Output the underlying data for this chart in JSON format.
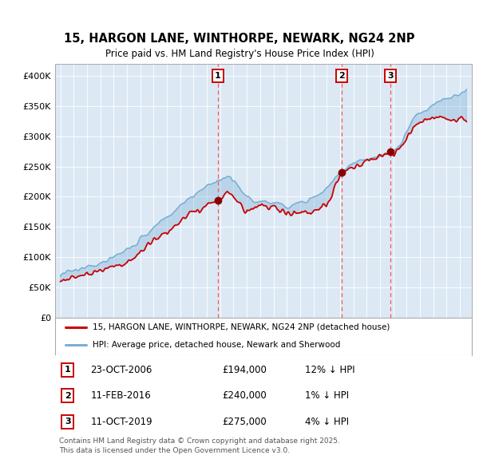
{
  "title": "15, HARGON LANE, WINTHORPE, NEWARK, NG24 2NP",
  "subtitle": "Price paid vs. HM Land Registry's House Price Index (HPI)",
  "bg_color": "#dce9f5",
  "hpi_color": "#7aafd4",
  "price_color": "#cc0000",
  "sale_marker_color": "#880000",
  "vline_color": "#ff5555",
  "sale_points": [
    {
      "date_num": 2006.81,
      "price": 194000,
      "label": "1",
      "date_str": "23-OCT-2006",
      "hpi_pct": "12% ↓ HPI"
    },
    {
      "date_num": 2016.11,
      "price": 240000,
      "label": "2",
      "date_str": "11-FEB-2016",
      "hpi_pct": "1% ↓ HPI"
    },
    {
      "date_num": 2019.78,
      "price": 275000,
      "label": "3",
      "date_str": "11-OCT-2019",
      "hpi_pct": "4% ↓ HPI"
    }
  ],
  "legend_line1": "15, HARGON LANE, WINTHORPE, NEWARK, NG24 2NP (detached house)",
  "legend_line2": "HPI: Average price, detached house, Newark and Sherwood",
  "footer": "Contains HM Land Registry data © Crown copyright and database right 2025.\nThis data is licensed under the Open Government Licence v3.0.",
  "ylim": [
    0,
    420000
  ],
  "yticks": [
    0,
    50000,
    100000,
    150000,
    200000,
    250000,
    300000,
    350000,
    400000
  ],
  "ytick_labels": [
    "£0",
    "£50K",
    "£100K",
    "£150K",
    "£200K",
    "£250K",
    "£300K",
    "£350K",
    "£400K"
  ]
}
